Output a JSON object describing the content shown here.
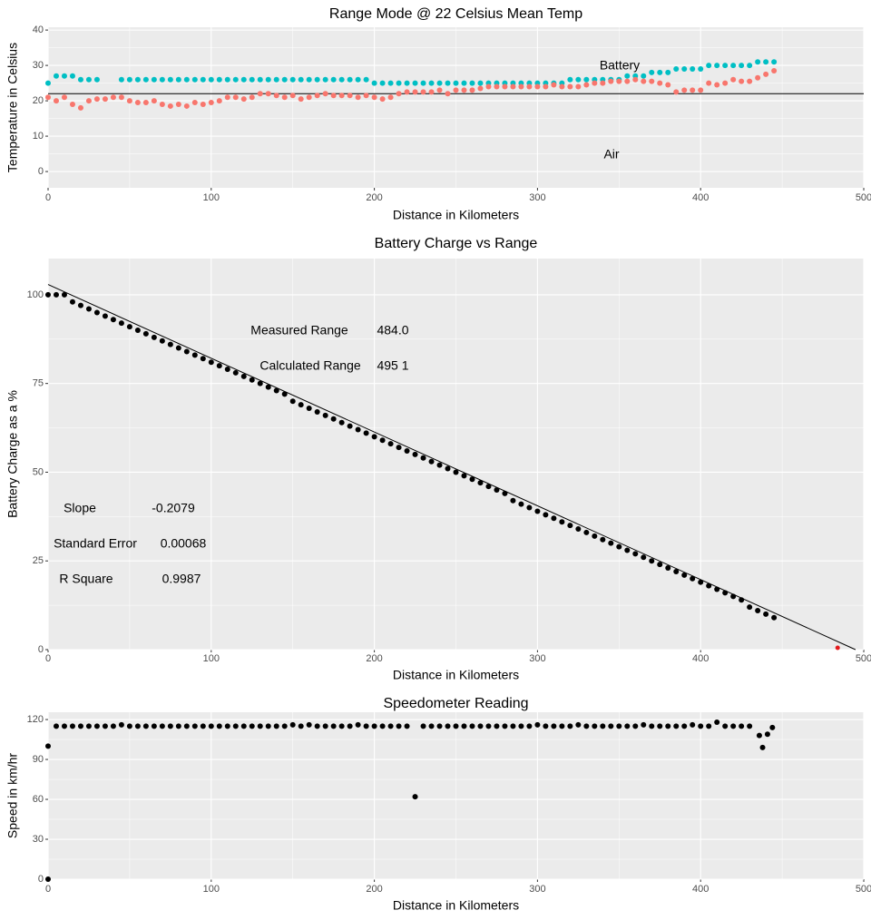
{
  "chart_data": [
    {
      "type": "scatter",
      "title": "Range Mode @ 22 Celsius Mean Temp",
      "x_label": "Distance in Kilometers",
      "y_label": "Temperature in Celsius",
      "xlim": [
        0,
        500
      ],
      "xticks": [
        0,
        100,
        200,
        300,
        400,
        500
      ],
      "ylim": [
        -4.6,
        40.8
      ],
      "yticks": [
        0,
        10,
        20,
        30,
        40
      ],
      "grid": true,
      "hline": 22,
      "annotations": [
        "Battery",
        "Air"
      ],
      "x": [
        0,
        5,
        10,
        15,
        20,
        25,
        30,
        35,
        40,
        45,
        50,
        55,
        60,
        65,
        70,
        75,
        80,
        85,
        90,
        95,
        100,
        105,
        110,
        115,
        120,
        125,
        130,
        135,
        140,
        145,
        150,
        155,
        160,
        165,
        170,
        175,
        180,
        185,
        190,
        195,
        200,
        205,
        210,
        215,
        220,
        225,
        230,
        235,
        240,
        245,
        250,
        255,
        260,
        265,
        270,
        275,
        280,
        285,
        290,
        295,
        300,
        305,
        310,
        315,
        320,
        325,
        330,
        335,
        340,
        345,
        350,
        355,
        360,
        365,
        370,
        375,
        380,
        385,
        390,
        395,
        400,
        405,
        410,
        415,
        420,
        425,
        430,
        435,
        440,
        445
      ],
      "series": [
        {
          "name": "Battery",
          "color": "#00BFC4",
          "values": [
            25,
            27,
            27,
            27,
            26,
            26,
            26,
            null,
            null,
            26,
            26,
            26,
            26,
            26,
            26,
            26,
            26,
            26,
            26,
            26,
            26,
            26,
            26,
            26,
            26,
            26,
            26,
            26,
            26,
            26,
            26,
            26,
            26,
            26,
            26,
            26,
            26,
            26,
            26,
            26,
            25,
            25,
            25,
            25,
            25,
            25,
            25,
            25,
            25,
            25,
            25,
            25,
            25,
            25,
            25,
            25,
            25,
            25,
            25,
            25,
            25,
            25,
            25,
            25,
            26,
            26,
            26,
            26,
            26,
            26,
            26,
            27,
            27,
            27,
            28,
            28,
            28,
            29,
            29,
            29,
            29,
            30,
            30,
            30,
            30,
            30,
            30,
            31,
            31,
            31
          ]
        },
        {
          "name": "Air",
          "color": "#F8766D",
          "values": [
            21,
            20,
            21,
            19,
            18,
            20,
            20.5,
            20.5,
            21,
            21,
            20,
            19.5,
            19.5,
            20,
            19,
            18.5,
            19,
            18.5,
            19.5,
            19,
            19.5,
            20,
            21,
            21,
            20.5,
            21,
            22,
            22,
            21.5,
            21,
            21.5,
            20.5,
            21,
            21.5,
            22,
            21.5,
            21.5,
            21.5,
            21,
            21.5,
            21,
            20.5,
            21,
            22,
            22.5,
            22.5,
            22.5,
            22.5,
            23,
            22,
            23,
            23,
            23,
            23.5,
            24,
            24,
            24,
            24,
            24,
            24,
            24,
            24,
            24.5,
            24,
            24,
            24,
            24.5,
            25,
            25,
            25.5,
            25.5,
            25.5,
            26,
            25.5,
            25.5,
            25,
            24.5,
            22.5,
            23,
            23,
            23,
            25,
            24.5,
            25,
            26,
            25.5,
            25.5,
            26.5,
            27.5,
            28.5
          ]
        }
      ]
    },
    {
      "type": "scatter",
      "title": "Battery Charge vs Range",
      "x_label": "Distance in Kilometers",
      "y_label": "Battery Charge as a %",
      "xlim": [
        0,
        500
      ],
      "xticks": [
        0,
        100,
        200,
        300,
        400,
        500
      ],
      "ylim": [
        0,
        110.2
      ],
      "yticks": [
        0,
        25,
        50,
        75,
        100
      ],
      "grid": true,
      "fit_line": {
        "intercept": 102.9,
        "slope": -0.2079
      },
      "measured_point": {
        "x": 484,
        "y": 0.5,
        "color": "#E41A1C"
      },
      "annotations": [
        "Measured Range",
        "484.0",
        "Calculated Range",
        "495  1",
        "Slope",
        "-0.2079",
        "Standard Error",
        "0.00068",
        "R Square",
        "0.9987"
      ],
      "x": [
        0,
        5,
        10,
        15,
        20,
        25,
        30,
        35,
        40,
        45,
        50,
        55,
        60,
        65,
        70,
        75,
        80,
        85,
        90,
        95,
        100,
        105,
        110,
        115,
        120,
        125,
        130,
        135,
        140,
        145,
        150,
        155,
        160,
        165,
        170,
        175,
        180,
        185,
        190,
        195,
        200,
        205,
        210,
        215,
        220,
        225,
        230,
        235,
        240,
        245,
        250,
        255,
        260,
        265,
        270,
        275,
        280,
        285,
        290,
        295,
        300,
        305,
        310,
        315,
        320,
        325,
        330,
        335,
        340,
        345,
        350,
        355,
        360,
        365,
        370,
        375,
        380,
        385,
        390,
        395,
        400,
        405,
        410,
        415,
        420,
        425,
        430,
        435,
        440,
        445
      ],
      "series": [
        {
          "name": "Battery Charge",
          "color": "#000000",
          "values": [
            100,
            100,
            100,
            98,
            97,
            96,
            95,
            94,
            93,
            92,
            91,
            90,
            89,
            88,
            87,
            86,
            85,
            84,
            83,
            82,
            81,
            80,
            79,
            78,
            77,
            76,
            75,
            74,
            73,
            72,
            70,
            69,
            68,
            67,
            66,
            65,
            64,
            63,
            62,
            61,
            60,
            59,
            58,
            57,
            56,
            55,
            54,
            53,
            52,
            51,
            50,
            49,
            48,
            47,
            46,
            45,
            44,
            42,
            41,
            40,
            39,
            38,
            37,
            36,
            35,
            34,
            33,
            32,
            31,
            30,
            29,
            28,
            27,
            26,
            25,
            24,
            23,
            22,
            21,
            20,
            19,
            18,
            17,
            16,
            15,
            14,
            12,
            11,
            10,
            9
          ]
        }
      ]
    },
    {
      "type": "scatter",
      "title": "Speedometer Reading",
      "x_label": "Distance in Kilometers",
      "y_label": "Speed in km/hr",
      "xlim": [
        0,
        500
      ],
      "xticks": [
        0,
        100,
        200,
        300,
        400,
        500
      ],
      "ylim": [
        0,
        125.5
      ],
      "yticks": [
        0,
        30,
        60,
        90,
        120
      ],
      "grid": true,
      "x": [
        0,
        0,
        5,
        10,
        15,
        20,
        25,
        30,
        35,
        40,
        45,
        50,
        55,
        60,
        65,
        70,
        75,
        80,
        85,
        90,
        95,
        100,
        105,
        110,
        115,
        120,
        125,
        130,
        135,
        140,
        145,
        150,
        155,
        160,
        165,
        170,
        175,
        180,
        185,
        190,
        195,
        200,
        205,
        210,
        215,
        220,
        225,
        230,
        235,
        240,
        245,
        250,
        255,
        260,
        265,
        270,
        275,
        280,
        285,
        290,
        295,
        300,
        305,
        310,
        315,
        320,
        325,
        330,
        335,
        340,
        345,
        350,
        355,
        360,
        365,
        370,
        375,
        380,
        385,
        390,
        395,
        400,
        405,
        410,
        415,
        420,
        425,
        430,
        436,
        438,
        441,
        444
      ],
      "series": [
        {
          "name": "Speed",
          "color": "#000000",
          "values": [
            0,
            100,
            115,
            115,
            115,
            115,
            115,
            115,
            115,
            115,
            116,
            115,
            115,
            115,
            115,
            115,
            115,
            115,
            115,
            115,
            115,
            115,
            115,
            115,
            115,
            115,
            115,
            115,
            115,
            115,
            115,
            116,
            115,
            116,
            115,
            115,
            115,
            115,
            115,
            116,
            115,
            115,
            115,
            115,
            115,
            115,
            62,
            115,
            115,
            115,
            115,
            115,
            115,
            115,
            115,
            115,
            115,
            115,
            115,
            115,
            115,
            116,
            115,
            115,
            115,
            115,
            116,
            115,
            115,
            115,
            115,
            115,
            115,
            115,
            116,
            115,
            115,
            115,
            115,
            115,
            116,
            115,
            115,
            118,
            115,
            115,
            115,
            115,
            108,
            99,
            109,
            114
          ]
        }
      ]
    }
  ]
}
